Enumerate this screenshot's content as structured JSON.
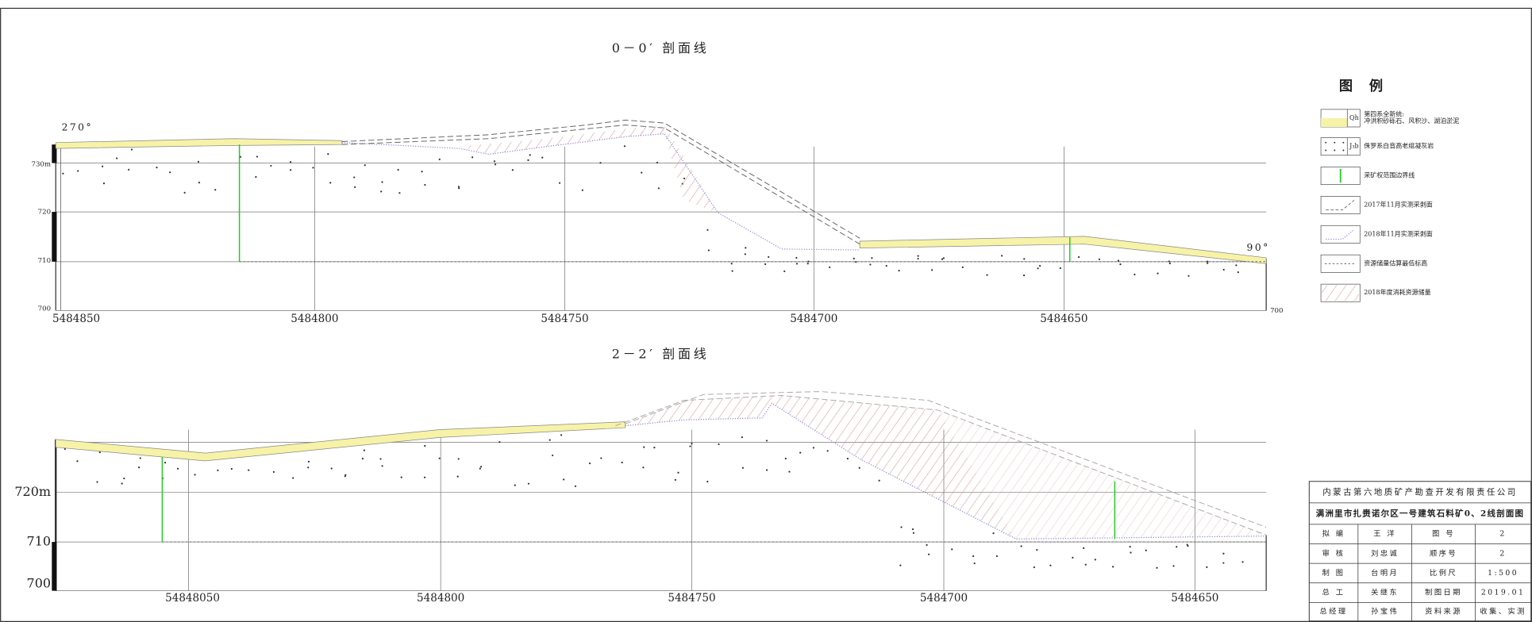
{
  "sections": [
    {
      "title": "0－0′ 剖面线",
      "left_direction": "270°",
      "right_direction": "90°",
      "y_labels": [
        "730m",
        "720",
        "710",
        "700"
      ],
      "right_label": "700",
      "x_labels": [
        "5484850",
        "5484800",
        "5484750",
        "5484700",
        "5484650"
      ]
    },
    {
      "title": "2－2′ 剖面线",
      "y_labels": [
        "720m",
        "710",
        "700"
      ],
      "x_labels": [
        "54848050",
        "5484800",
        "5484750",
        "5484700",
        "5484650"
      ]
    }
  ],
  "legend": {
    "title": "图 例",
    "items": [
      {
        "symbol": "Qh",
        "text": [
          "第四系全新统:",
          "冲洪积砂砾石、风积沙、湖泊淤泥"
        ]
      },
      {
        "symbol": "J₃b",
        "text": [
          "侏罗系白音高老组凝灰岩"
        ]
      },
      {
        "text": [
          "采矿权范围边界线"
        ]
      },
      {
        "text": [
          "2017年11月实测采剥面"
        ]
      },
      {
        "text": [
          "2018年11月实测采剥面"
        ]
      },
      {
        "text": [
          "资源储量估算最低标高"
        ]
      },
      {
        "text": [
          "2018年度消耗资源储量"
        ]
      }
    ]
  },
  "title_block": {
    "company": "内蒙古第六地质矿产勘查开发有限责任公司",
    "drawing": "满洲里市扎赉诺尔区一号建筑石料矿0、2线剖面图",
    "rows": [
      [
        "拟 编",
        "王 洋",
        "图 号",
        "2"
      ],
      [
        "审 核",
        "刘忠诚",
        "顺序号",
        "2"
      ],
      [
        "制 图",
        "台明月",
        "比例尺",
        "1:500"
      ],
      [
        "总 工",
        "关继东",
        "制图日期",
        "2019.01"
      ],
      [
        "总经理",
        "孙宝伟",
        "资料来源",
        "收集、实测"
      ]
    ]
  }
}
